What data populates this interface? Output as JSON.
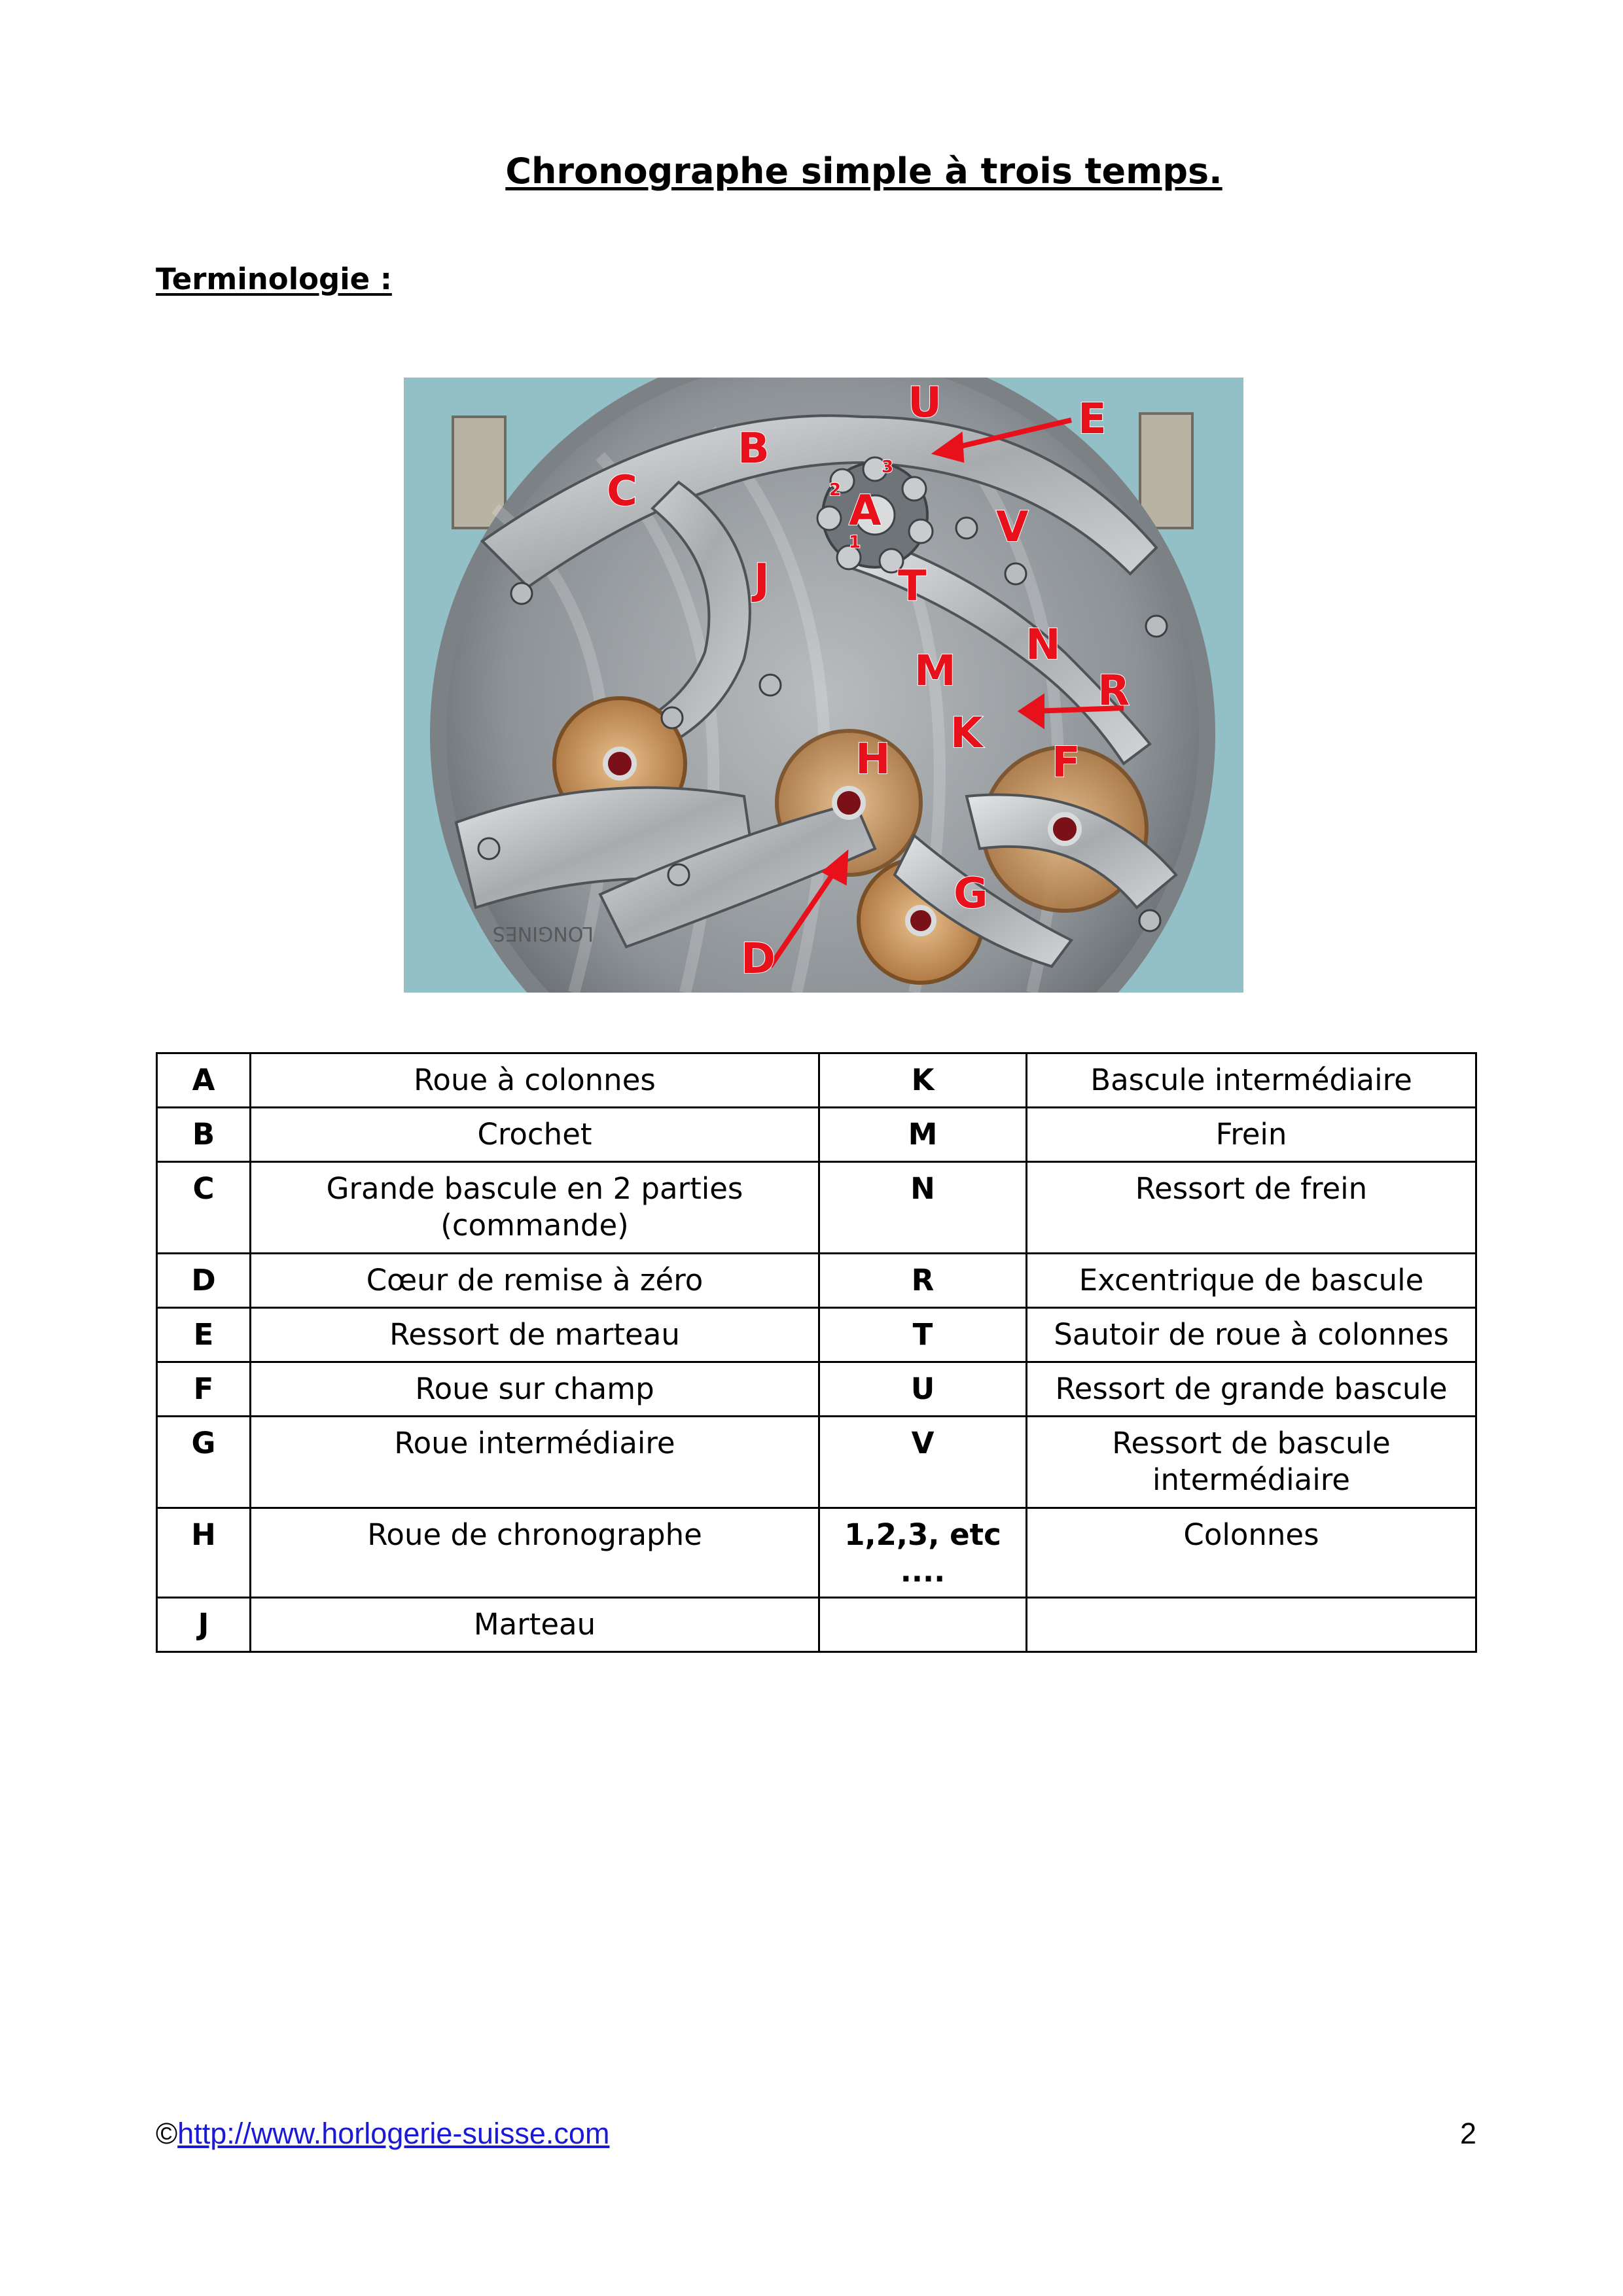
{
  "title": "Chronographe simple à trois temps.",
  "subtitle": "Terminologie :",
  "photo": {
    "labels": [
      "U",
      "E",
      "B",
      "C",
      "A",
      "V",
      "J",
      "T",
      "N",
      "M",
      "R",
      "K",
      "H",
      "F",
      "G",
      "D"
    ],
    "column_numbers": [
      "1",
      "2",
      "3"
    ],
    "engraving": "LONGINES"
  },
  "table": {
    "rows": [
      {
        "code1": "A",
        "term1": "Roue à colonnes",
        "code2": "K",
        "term2": "Bascule intermédiaire"
      },
      {
        "code1": "B",
        "term1": "Crochet",
        "code2": "M",
        "term2": "Frein"
      },
      {
        "code1": "C",
        "term1": "Grande bascule en 2 parties (commande)",
        "code2": "N",
        "term2": "Ressort de frein"
      },
      {
        "code1": "D",
        "term1": "Cœur de remise à zéro",
        "code2": "R",
        "term2": "Excentrique de bascule"
      },
      {
        "code1": "E",
        "term1": "Ressort de marteau",
        "code2": "T",
        "term2": "Sautoir de roue à colonnes"
      },
      {
        "code1": "F",
        "term1": "Roue sur champ",
        "code2": "U",
        "term2": "Ressort de grande bascule"
      },
      {
        "code1": "G",
        "term1": "Roue intermédiaire",
        "code2": "V",
        "term2": "Ressort de bascule intermédiaire"
      },
      {
        "code1": "H",
        "term1": "Roue de chronographe",
        "code2": "1,2,3, etc ....",
        "term2": "Colonnes"
      },
      {
        "code1": "J",
        "term1": "Marteau",
        "code2": "",
        "term2": ""
      }
    ]
  },
  "footer": {
    "copyright": "©",
    "link": "http://www.horlogerie-suisse.com",
    "page": "2"
  }
}
